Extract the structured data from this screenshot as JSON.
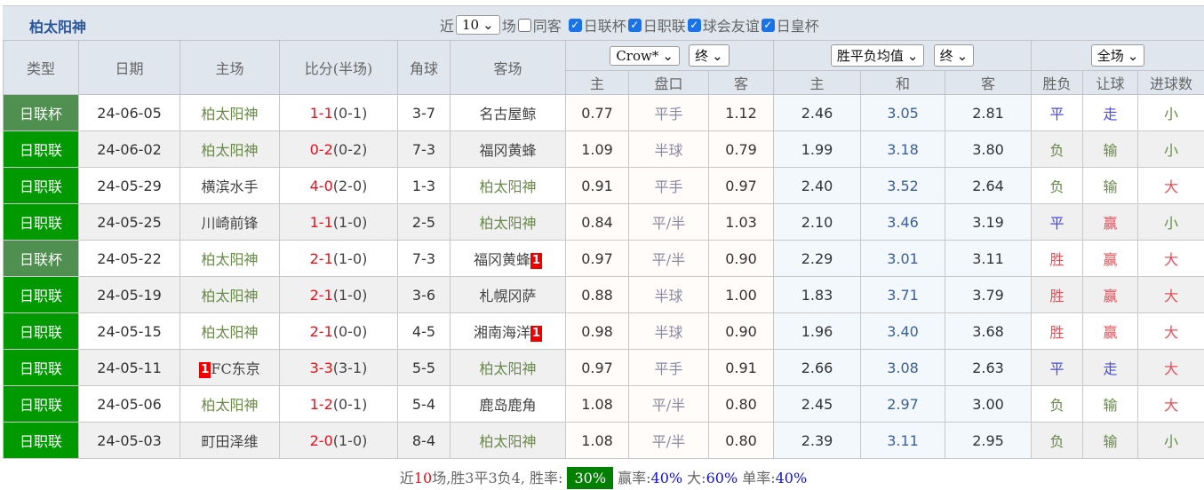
{
  "title": "柏太阳神",
  "filters": {
    "recent_label": "近",
    "recent_value": "10",
    "games_label": "场",
    "checkboxes": [
      {
        "label": "同客",
        "checked": false
      },
      {
        "label": "日联杯",
        "checked": true
      },
      {
        "label": "日职联",
        "checked": true
      },
      {
        "label": "球会友谊",
        "checked": true
      },
      {
        "label": "日皇杯",
        "checked": true
      }
    ]
  },
  "headers": {
    "type": "类型",
    "date": "日期",
    "home": "主场",
    "score": "比分(半场)",
    "corner": "角球",
    "away": "客场",
    "asia_company": "Crow*",
    "asia_stage": "终",
    "eu_type": "胜平负均值",
    "eu_stage": "终",
    "scope": "全场",
    "sub": [
      "主",
      "盘口",
      "客",
      "主",
      "和",
      "客",
      "胜负",
      "让球",
      "进球数"
    ]
  },
  "colors": {
    "cup": "#4f8f4f",
    "league": "#009a00",
    "win": "#e0505a",
    "draw": "#4a4ae0",
    "loss": "#6a8a4a"
  },
  "rows": [
    [
      "日联杯",
      "24-06-05",
      "柏太阳神",
      "",
      "1-1",
      "(0-1)",
      "3-7",
      "名古屋鲸",
      "",
      "0.77",
      "平手",
      "1.12",
      "2.46",
      "3.05",
      "2.81",
      "平",
      "走",
      "小"
    ],
    [
      "日职联",
      "24-06-02",
      "柏太阳神",
      "",
      "0-2",
      "(0-2)",
      "7-3",
      "福冈黄蜂",
      "",
      "1.09",
      "半球",
      "0.79",
      "1.99",
      "3.18",
      "3.80",
      "负",
      "输",
      "小"
    ],
    [
      "日职联",
      "24-05-29",
      "横滨水手",
      "",
      "4-0",
      "(2-0)",
      "1-3",
      "柏太阳神",
      "",
      "0.91",
      "平手",
      "0.97",
      "2.40",
      "3.52",
      "2.64",
      "负",
      "输",
      "大"
    ],
    [
      "日职联",
      "24-05-25",
      "川崎前锋",
      "",
      "1-1",
      "(1-0)",
      "2-5",
      "柏太阳神",
      "",
      "0.84",
      "平/半",
      "1.03",
      "2.10",
      "3.46",
      "3.19",
      "平",
      "赢",
      "小"
    ],
    [
      "日联杯",
      "24-05-22",
      "柏太阳神",
      "",
      "2-1",
      "(1-0)",
      "7-3",
      "福冈黄蜂",
      "1",
      "0.97",
      "平/半",
      "0.90",
      "2.29",
      "3.01",
      "3.11",
      "胜",
      "赢",
      "大"
    ],
    [
      "日职联",
      "24-05-19",
      "柏太阳神",
      "",
      "2-1",
      "(1-0)",
      "3-6",
      "札幌冈萨",
      "",
      "0.88",
      "半球",
      "1.00",
      "1.83",
      "3.71",
      "3.79",
      "胜",
      "赢",
      "大"
    ],
    [
      "日职联",
      "24-05-15",
      "柏太阳神",
      "",
      "2-1",
      "(0-0)",
      "4-5",
      "湘南海洋",
      "1",
      "0.98",
      "半球",
      "0.90",
      "1.96",
      "3.40",
      "3.68",
      "胜",
      "赢",
      "大"
    ],
    [
      "日职联",
      "24-05-11",
      "FC东京",
      "1",
      "3-3",
      "(3-1)",
      "5-5",
      "柏太阳神",
      "",
      "0.97",
      "平手",
      "0.91",
      "2.66",
      "3.08",
      "2.63",
      "平",
      "走",
      "大"
    ],
    [
      "日职联",
      "24-05-06",
      "柏太阳神",
      "",
      "1-2",
      "(0-1)",
      "5-4",
      "鹿岛鹿角",
      "",
      "1.08",
      "平/半",
      "0.80",
      "2.45",
      "2.97",
      "3.00",
      "负",
      "输",
      "大"
    ],
    [
      "日职联",
      "24-05-03",
      "町田泽维",
      "",
      "2-0",
      "(1-0)",
      "8-4",
      "柏太阳神",
      "",
      "1.08",
      "平/半",
      "0.80",
      "2.39",
      "3.11",
      "2.95",
      "负",
      "输",
      "小"
    ]
  ],
  "summary": {
    "p1": "近",
    "n": "10",
    "p2": "场,胜3平3负4, 胜率:",
    "win_rate": "30%",
    "p3": " 赢率:",
    "cover_rate": "40%",
    "p4": " 大:",
    "over_rate": "60%",
    "p5": " 单率:",
    "odd_rate": "40%"
  }
}
